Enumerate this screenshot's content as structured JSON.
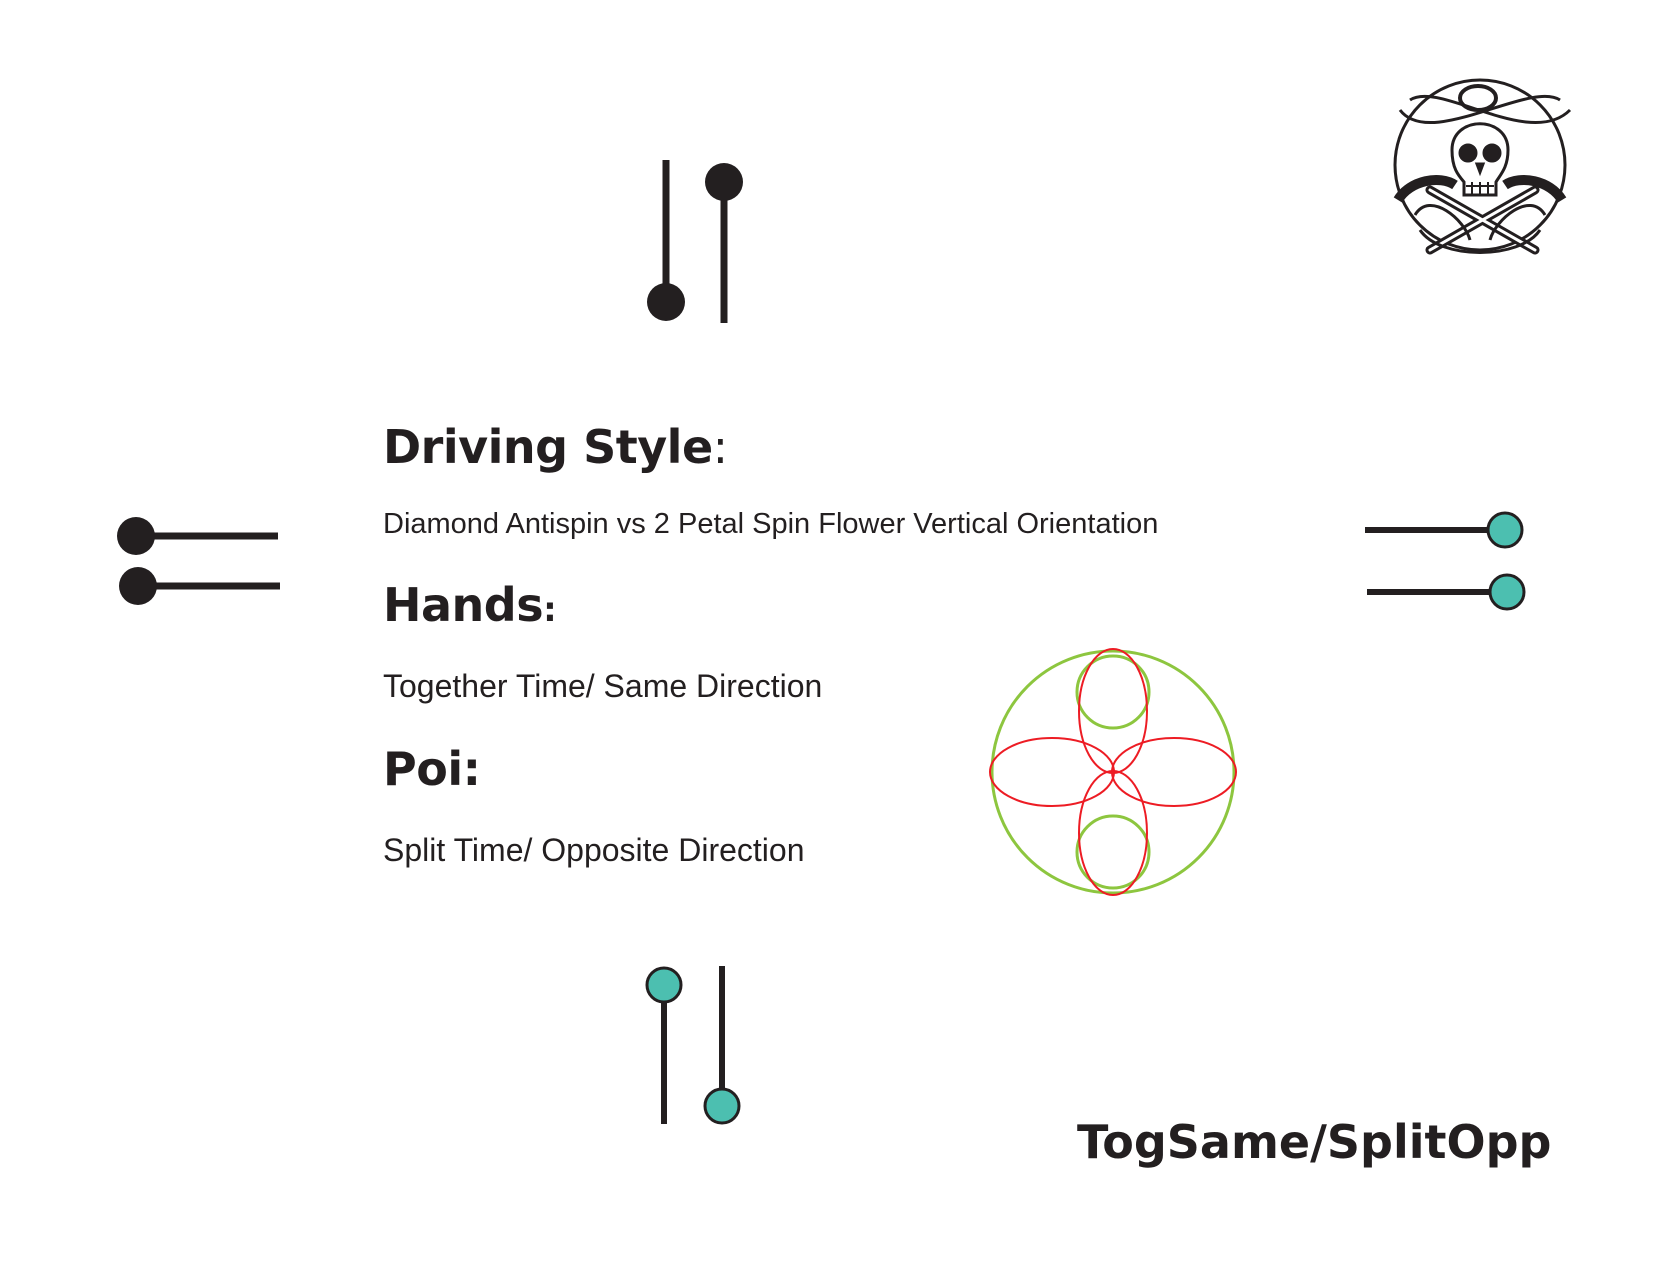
{
  "driving_style": {
    "heading": "Driving Style",
    "heading_colon": ":",
    "description": "Diamond Antispin vs  2 Petal Spin Flower Vertical Orientation"
  },
  "hands": {
    "heading": "Hands",
    "heading_colon": ":",
    "description": "Together Time/ Same Direction"
  },
  "poi": {
    "heading": "Poi:",
    "description": "Split Time/ Opposite Direction"
  },
  "footer_label": "TogSame/SplitOpp",
  "colors": {
    "line": "#231f20",
    "black_head": "#231f20",
    "teal_head": "#4cbfb0",
    "green_path": "#8dc63f",
    "red_path": "#ed1c24"
  },
  "icons": [
    "skull-crossbones-logo-icon"
  ]
}
